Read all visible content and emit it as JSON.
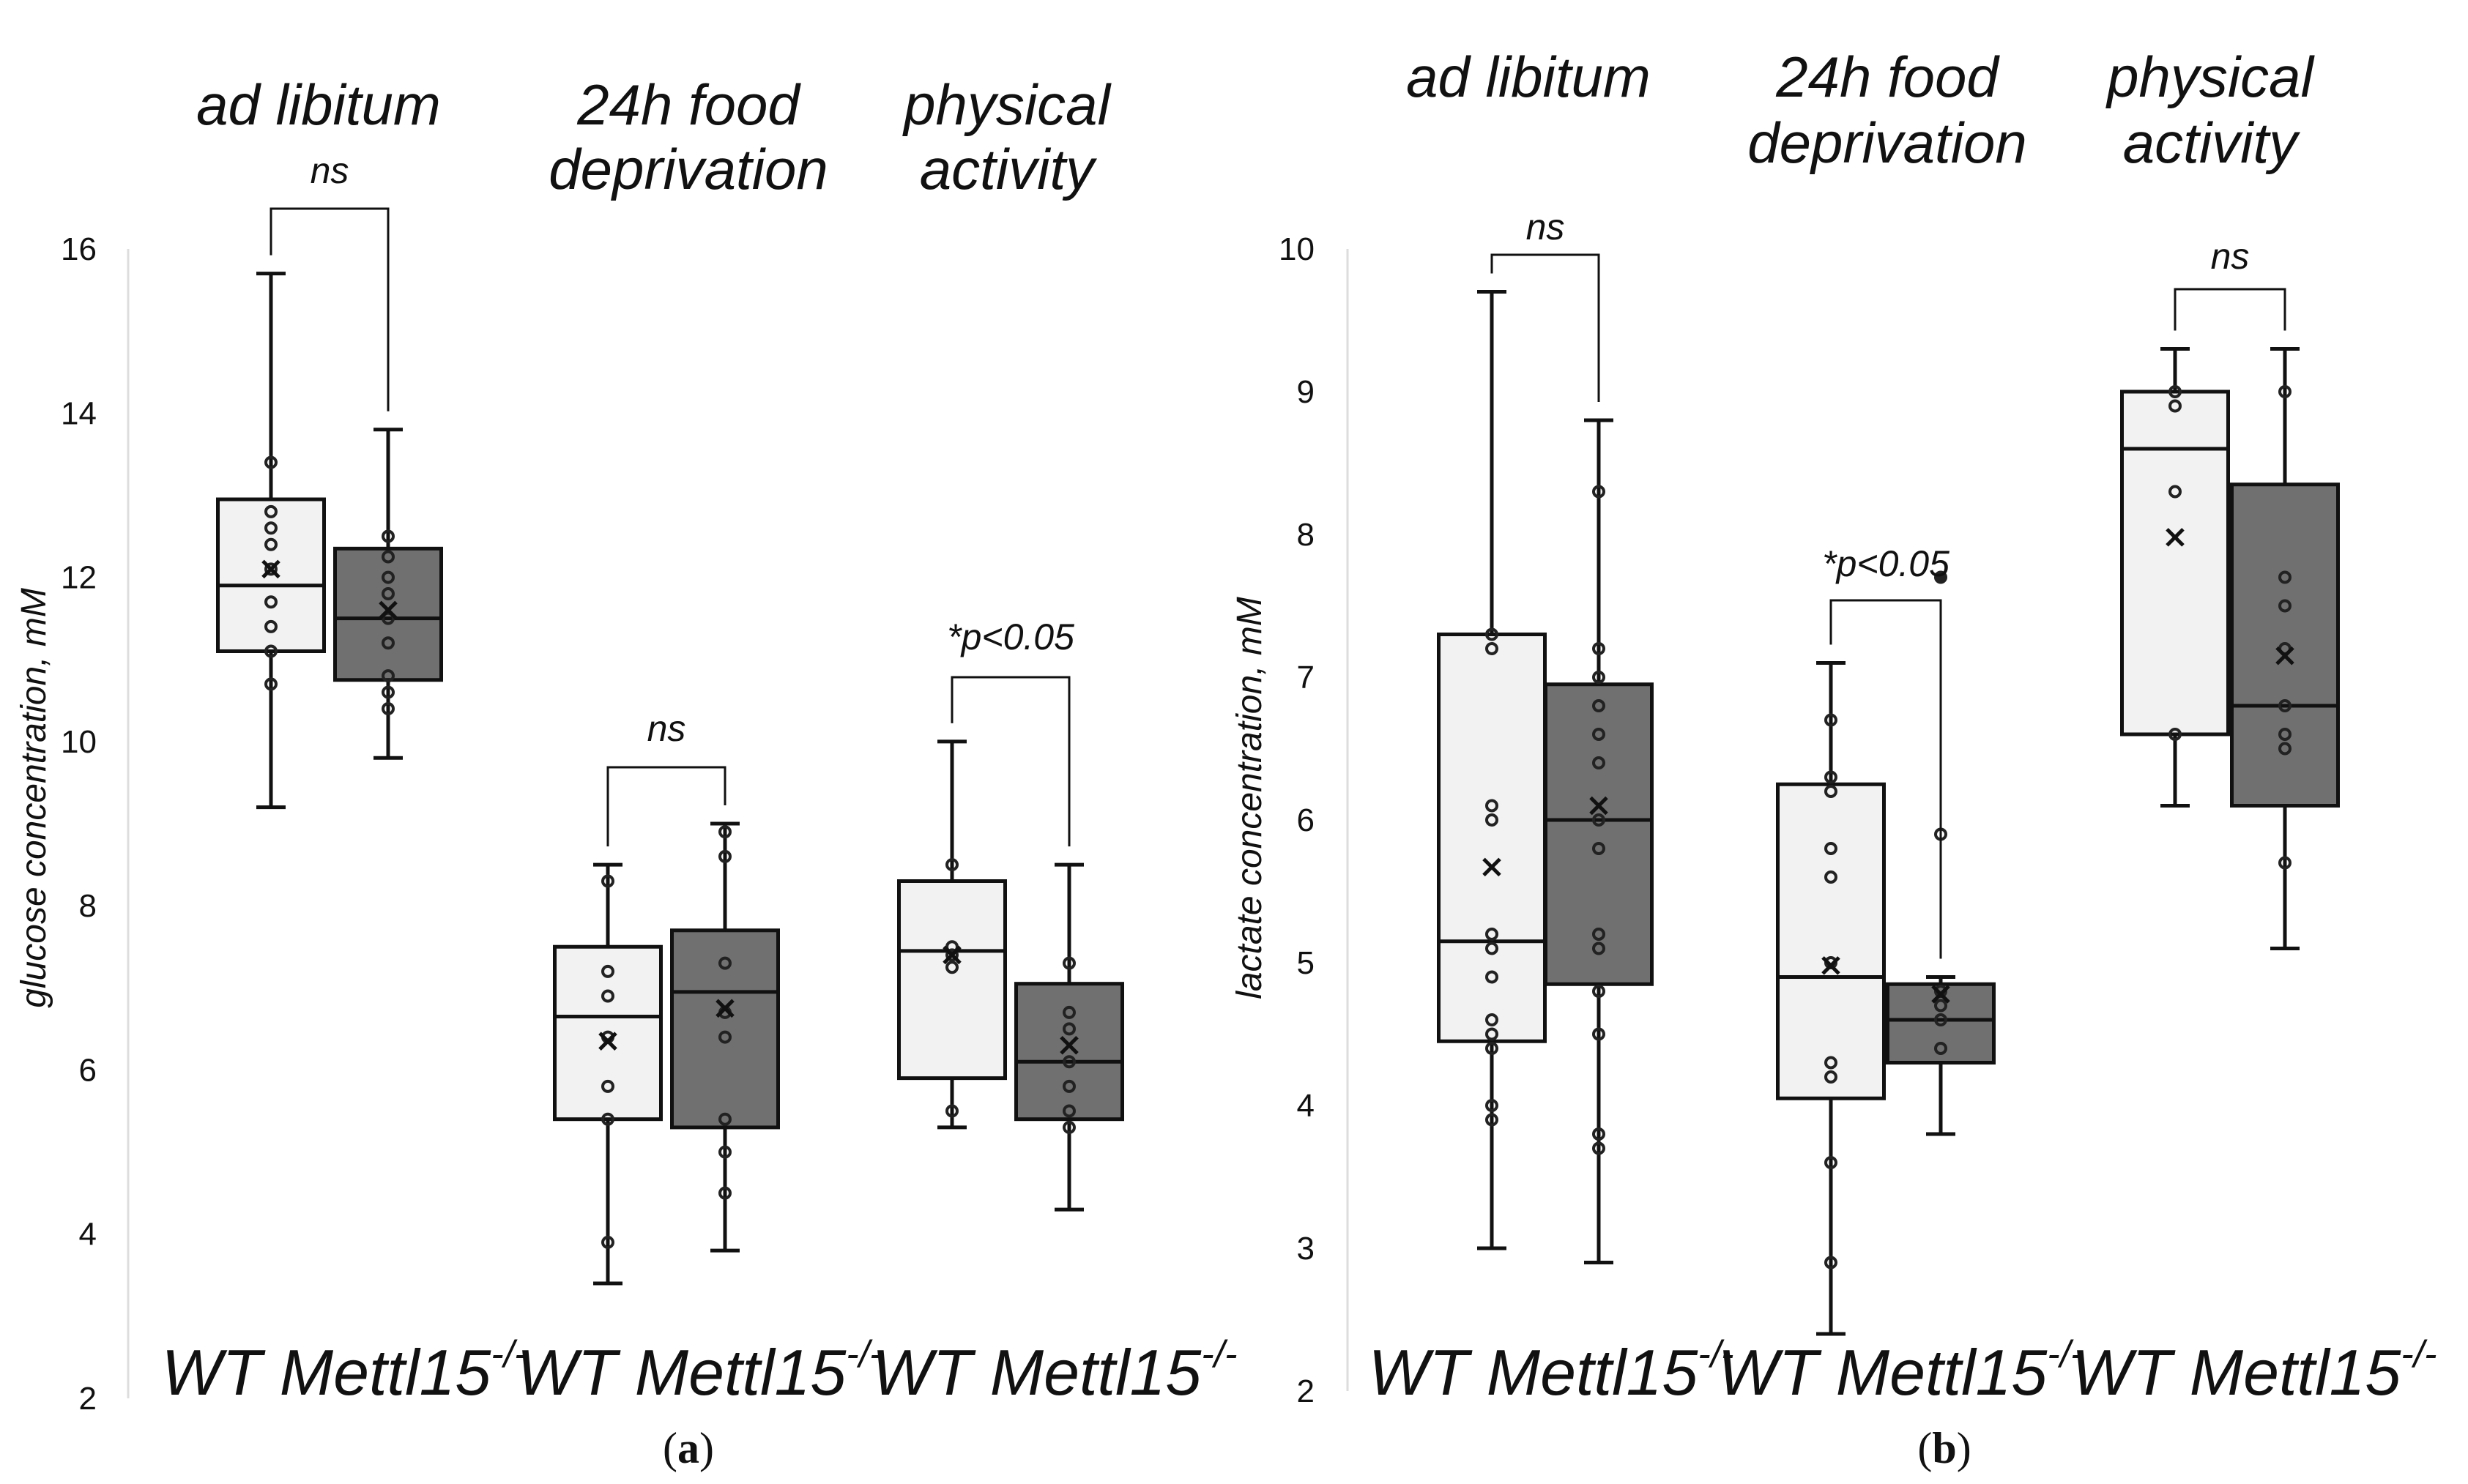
{
  "chart_data": [
    {
      "type": "box",
      "panel_label": "(a)",
      "panel_letter": "a",
      "ylabel": "glucose concentration, mM",
      "ylim": [
        2,
        16
      ],
      "yticks": [
        2,
        4,
        6,
        8,
        10,
        12,
        14,
        16
      ],
      "groups": [
        {
          "name_lines": [
            "ad libitum"
          ],
          "significance": "ns"
        },
        {
          "name_lines": [
            "24h food",
            "deprivation"
          ],
          "significance": "ns"
        },
        {
          "name_lines": [
            "physical",
            "activity"
          ],
          "significance": "*p<0.05"
        }
      ],
      "xlabels": [
        "WT Mettl15-/-",
        "WT Mettl15-/-",
        "WT Mettl15-/-"
      ],
      "boxes": [
        {
          "group": 0,
          "genotype": "WT",
          "color": "#f2f2f2",
          "whisker_low": 9.2,
          "q1": 11.1,
          "median": 11.9,
          "q3": 12.95,
          "whisker_high": 15.7,
          "mean": 12.1,
          "points": [
            10.7,
            11.1,
            11.4,
            11.7,
            12.1,
            12.4,
            12.6,
            12.8,
            13.4
          ]
        },
        {
          "group": 0,
          "genotype": "Mettl15-/-",
          "color": "#707070",
          "whisker_low": 9.8,
          "q1": 10.75,
          "median": 11.5,
          "q3": 12.35,
          "whisker_high": 13.8,
          "mean": 11.6,
          "points": [
            10.4,
            10.6,
            10.8,
            11.2,
            11.5,
            11.8,
            12.0,
            12.25,
            12.5
          ]
        },
        {
          "group": 1,
          "genotype": "WT",
          "color": "#f2f2f2",
          "whisker_low": 3.4,
          "q1": 5.4,
          "median": 6.65,
          "q3": 7.5,
          "whisker_high": 8.5,
          "mean": 6.35,
          "points": [
            3.9,
            5.4,
            5.8,
            6.4,
            6.9,
            7.2,
            8.3
          ]
        },
        {
          "group": 1,
          "genotype": "Mettl15-/-",
          "color": "#707070",
          "whisker_low": 3.8,
          "q1": 5.3,
          "median": 6.95,
          "q3": 7.7,
          "whisker_high": 9.0,
          "mean": 6.75,
          "points": [
            4.5,
            5.0,
            5.4,
            6.4,
            6.7,
            7.3,
            8.6,
            8.9
          ]
        },
        {
          "group": 2,
          "genotype": "WT",
          "color": "#f2f2f2",
          "whisker_low": 5.3,
          "q1": 5.9,
          "median": 7.45,
          "q3": 8.3,
          "whisker_high": 10.0,
          "mean": 7.4,
          "points": [
            5.5,
            7.25,
            7.4,
            7.5,
            8.5
          ]
        },
        {
          "group": 2,
          "genotype": "Mettl15-/-",
          "color": "#707070",
          "whisker_low": 4.3,
          "q1": 5.4,
          "median": 6.1,
          "q3": 7.05,
          "whisker_high": 8.5,
          "mean": 6.3,
          "points": [
            5.3,
            5.5,
            5.8,
            6.1,
            6.5,
            6.7,
            7.3
          ]
        }
      ]
    },
    {
      "type": "box",
      "panel_label": "(b)",
      "panel_letter": "b",
      "ylabel": "lactate concentration, mM",
      "ylim": [
        2,
        10
      ],
      "yticks": [
        2,
        3,
        4,
        5,
        6,
        7,
        8,
        9,
        10
      ],
      "groups": [
        {
          "name_lines": [
            "ad libitum"
          ],
          "significance": "ns"
        },
        {
          "name_lines": [
            "24h food",
            "deprivation"
          ],
          "significance": "*p<0.05"
        },
        {
          "name_lines": [
            "physical",
            "activity"
          ],
          "significance": "ns"
        }
      ],
      "xlabels": [
        "WT Mettl15-/-",
        "WT Mettl15-/-",
        "WT Mettl15-/-"
      ],
      "boxes": [
        {
          "group": 0,
          "genotype": "WT",
          "color": "#f2f2f2",
          "whisker_low": 3.0,
          "q1": 4.45,
          "median": 5.15,
          "q3": 7.3,
          "whisker_high": 9.7,
          "mean": 5.67,
          "points": [
            3.9,
            4.0,
            4.4,
            4.5,
            4.6,
            4.9,
            5.1,
            5.2,
            6.0,
            6.1,
            7.2,
            7.3
          ]
        },
        {
          "group": 0,
          "genotype": "Mettl15-/-",
          "color": "#707070",
          "whisker_low": 2.9,
          "q1": 4.85,
          "median": 6.0,
          "q3": 6.95,
          "whisker_high": 8.8,
          "mean": 6.1,
          "points": [
            3.7,
            3.8,
            4.5,
            4.8,
            5.1,
            5.2,
            5.8,
            6.0,
            6.4,
            6.6,
            6.8,
            7.0,
            7.2,
            8.3
          ]
        },
        {
          "group": 1,
          "genotype": "WT",
          "color": "#f2f2f2",
          "whisker_low": 2.4,
          "q1": 4.05,
          "median": 4.9,
          "q3": 6.25,
          "whisker_high": 7.1,
          "mean": 4.98,
          "points": [
            2.9,
            3.6,
            4.2,
            4.3,
            5.0,
            5.6,
            5.8,
            6.2,
            6.3,
            6.7
          ]
        },
        {
          "group": 1,
          "genotype": "Mettl15-/-",
          "color": "#707070",
          "whisker_low": 3.8,
          "q1": 4.3,
          "median": 4.6,
          "q3": 4.85,
          "whisker_high": 4.9,
          "mean": 4.78,
          "points": [
            4.4,
            4.6,
            4.7,
            4.8,
            5.9
          ],
          "outliers": [
            7.7
          ]
        },
        {
          "group": 2,
          "genotype": "WT",
          "color": "#f2f2f2",
          "whisker_low": 6.1,
          "q1": 6.6,
          "median": 8.6,
          "q3": 9.0,
          "whisker_high": 9.3,
          "mean": 7.98,
          "points": [
            6.6,
            8.3,
            8.9,
            9.0
          ]
        },
        {
          "group": 2,
          "genotype": "Mettl15-/-",
          "color": "#707070",
          "whisker_low": 5.1,
          "q1": 6.1,
          "median": 6.8,
          "q3": 8.35,
          "whisker_high": 9.3,
          "mean": 7.15,
          "points": [
            5.7,
            6.5,
            6.6,
            6.8,
            7.2,
            7.5,
            7.7,
            9.0
          ]
        }
      ]
    }
  ]
}
